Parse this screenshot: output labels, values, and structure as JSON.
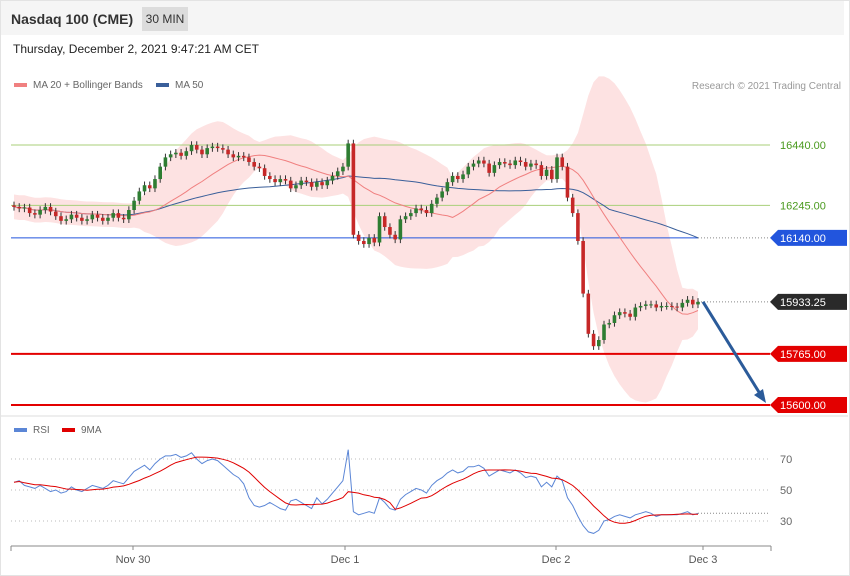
{
  "header": {
    "title": "Nasdaq 100 (CME)",
    "timeframe": "30 MIN"
  },
  "date_text": "Thursday, December 2, 2021 9:47:21 AM CET",
  "legend": {
    "ma20": "MA 20 + Bollinger Bands",
    "ma50": "MA 50",
    "rsi": "RSI",
    "ma9": "9MA"
  },
  "research": "Research © 2021 Trading Central",
  "colors": {
    "up": "#2e7d32",
    "down": "#c62828",
    "ma20": "#f08080",
    "ma50": "#3a5f9a",
    "band": "#fde2e2",
    "rsi": "#5b86d6",
    "ma9": "#e00000",
    "green_level": "#a8cf7a",
    "blue_level": "#2255dd",
    "red_level": "#e30000",
    "arrow": "#2b5b9a"
  },
  "chart_data": [
    {
      "type": "candlestick",
      "title": "",
      "x_labels": [
        "Nov 30",
        "Dec 1",
        "Dec 2",
        "Dec 3"
      ],
      "ylim": [
        15600,
        16600
      ],
      "levels": [
        {
          "value": 16440,
          "label": "16440.00",
          "style": "resistance"
        },
        {
          "value": 16245,
          "label": "16245.00",
          "style": "resistance"
        },
        {
          "value": 16140,
          "label": "16140.00",
          "style": "pivot"
        },
        {
          "value": 15933.25,
          "label": "15933.25",
          "style": "last"
        },
        {
          "value": 15765,
          "label": "15765.00",
          "style": "support"
        },
        {
          "value": 15600,
          "label": "15600.00",
          "style": "support"
        }
      ],
      "projection": {
        "from": 15933.25,
        "to": 15600
      },
      "close": [
        16240,
        16235,
        16238,
        16220,
        16215,
        16230,
        16240,
        16225,
        16210,
        16195,
        16200,
        16215,
        16205,
        16195,
        16200,
        16215,
        16205,
        16195,
        16205,
        16220,
        16205,
        16200,
        16230,
        16260,
        16290,
        16310,
        16300,
        16330,
        16370,
        16400,
        16410,
        16415,
        16405,
        16420,
        16440,
        16425,
        16410,
        16430,
        16435,
        16430,
        16425,
        16410,
        16400,
        16405,
        16400,
        16385,
        16370,
        16365,
        16340,
        16330,
        16320,
        16330,
        16325,
        16300,
        16310,
        16325,
        16320,
        16305,
        16320,
        16310,
        16325,
        16340,
        16355,
        16370,
        16445,
        16150,
        16130,
        16120,
        16140,
        16125,
        16210,
        16175,
        16150,
        16135,
        16200,
        16210,
        16220,
        16235,
        16230,
        16220,
        16250,
        16270,
        16290,
        16320,
        16340,
        16330,
        16345,
        16370,
        16380,
        16390,
        16380,
        16350,
        16375,
        16385,
        16380,
        16375,
        16390,
        16385,
        16370,
        16380,
        16375,
        16340,
        16360,
        16330,
        16400,
        16370,
        16270,
        16220,
        16130,
        15960,
        15830,
        15790,
        15810,
        15860,
        15865,
        15890,
        15900,
        15895,
        15885,
        15915,
        15920,
        15925,
        15925,
        15915,
        15920,
        15920,
        15918,
        15915,
        15930,
        15940,
        15925,
        15933.25
      ],
      "rsi": {
        "ylim": [
          20,
          80
        ],
        "ticks": [
          70,
          50,
          30
        ],
        "rsi": [
          55,
          56,
          53,
          52,
          51,
          53,
          51,
          49,
          50,
          48,
          49,
          52,
          50,
          49,
          51,
          53,
          52,
          51,
          53,
          56,
          55,
          54,
          58,
          62,
          64,
          66,
          63,
          67,
          70,
          72,
          72,
          73,
          71,
          72,
          74,
          70,
          67,
          69,
          70,
          69,
          66,
          63,
          60,
          58,
          54,
          45,
          40,
          39,
          40,
          42,
          40,
          38,
          37,
          43,
          44,
          42,
          40,
          38,
          45,
          41,
          44,
          48,
          52,
          56,
          76,
          36,
          34,
          35,
          36,
          35,
          45,
          42,
          38,
          37,
          44,
          47,
          49,
          51,
          50,
          48,
          53,
          56,
          58,
          61,
          63,
          61,
          62,
          65,
          65,
          66,
          64,
          59,
          61,
          63,
          62,
          61,
          63,
          61,
          58,
          59,
          58,
          52,
          55,
          52,
          59,
          56,
          45,
          40,
          33,
          27,
          23,
          22,
          24,
          30,
          31,
          33,
          34,
          33,
          32,
          34,
          35,
          36,
          35,
          33,
          34,
          34,
          34,
          34,
          35,
          36,
          34,
          35
        ]
      }
    }
  ]
}
